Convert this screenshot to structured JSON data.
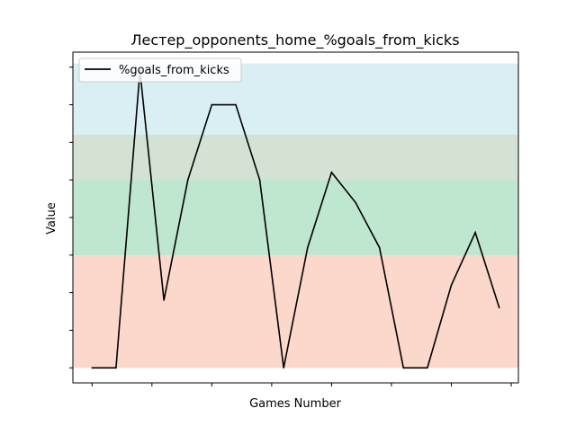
{
  "chart_data": {
    "type": "line",
    "title": "Лестер_opponents_home_%goals_from_kicks",
    "xlabel": "Games Number",
    "ylabel": "Value",
    "legend": {
      "placement": "top-left"
    },
    "grid": false,
    "xlim": [
      -0.8,
      17.8
    ],
    "ylim": [
      -0.2,
      4.2
    ],
    "x_tick_labels_visible": false,
    "y_tick_labels_visible": false,
    "x": [
      0,
      1,
      2,
      3,
      4,
      5,
      6,
      7,
      8,
      9,
      10,
      11,
      12,
      13,
      14,
      15,
      16,
      17
    ],
    "series": [
      {
        "name": "%goals_from_kicks",
        "color": "#000000",
        "values": [
          0.0,
          0.0,
          3.95,
          0.9,
          2.5,
          3.5,
          3.5,
          2.5,
          0.0,
          1.6,
          2.6,
          2.2,
          1.6,
          0.0,
          0.0,
          1.1,
          1.8,
          0.8
        ]
      }
    ],
    "bands": [
      {
        "from": 0.0,
        "to": 1.5,
        "color": "#f8b198",
        "opacity": 0.5
      },
      {
        "from": 1.5,
        "to": 2.5,
        "color": "#7fcd9d",
        "opacity": 0.5
      },
      {
        "from": 2.5,
        "to": 3.1,
        "color": "#a9c6a8",
        "opacity": 0.5
      },
      {
        "from": 3.1,
        "to": 4.05,
        "color": "#b4dfe8",
        "opacity": 0.5
      }
    ],
    "x_ticks": [
      0,
      2.5,
      5,
      7.5,
      10,
      12.5,
      15,
      17.5
    ],
    "y_ticks": [
      0,
      0.5,
      1.0,
      1.5,
      2.0,
      2.5,
      3.0,
      3.5,
      4.0
    ]
  }
}
